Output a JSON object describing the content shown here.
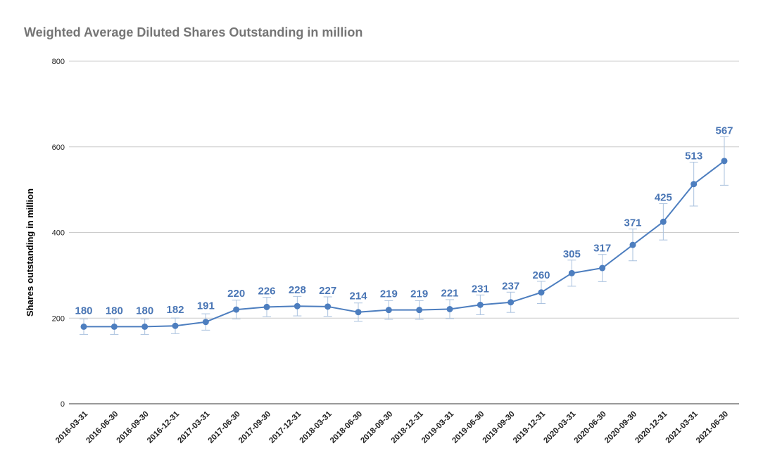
{
  "chart_data": {
    "type": "line",
    "title": "Weighted Average Diluted Shares Outstanding in million",
    "xlabel": "",
    "ylabel": "Shares outstanding in million",
    "ylim": [
      0,
      800
    ],
    "yticks": [
      0,
      200,
      400,
      600,
      800
    ],
    "grid": true,
    "legend": "none",
    "categories": [
      "2016-03-31",
      "2016-06-30",
      "2016-09-30",
      "2016-12-31",
      "2017-03-31",
      "2017-06-30",
      "2017-09-30",
      "2017-12-31",
      "2018-03-31",
      "2018-06-30",
      "2018-09-30",
      "2018-12-31",
      "2019-03-31",
      "2019-06-30",
      "2019-09-30",
      "2019-12-31",
      "2020-03-31",
      "2020-06-30",
      "2020-09-30",
      "2020-12-31",
      "2021-03-31",
      "2021-06-30"
    ],
    "series": [
      {
        "values": [
          180,
          180,
          180,
          182,
          191,
          220,
          226,
          228,
          227,
          214,
          219,
          219,
          221,
          231,
          237,
          260,
          305,
          317,
          371,
          425,
          513,
          567
        ],
        "error_bars_percent": 10
      }
    ],
    "data_labels": [
      "180",
      "180",
      "180",
      "182",
      "191",
      "220",
      "226",
      "228",
      "227",
      "214",
      "219",
      "219",
      "221",
      "231",
      "237",
      "260",
      "305",
      "317",
      "371",
      "425",
      "513",
      "567"
    ],
    "colors": {
      "line": "#4d7ebf",
      "label": "#4a76b5",
      "error_bar": "#a9c1de",
      "grid": "#cccccc",
      "axis": "#333333"
    }
  }
}
